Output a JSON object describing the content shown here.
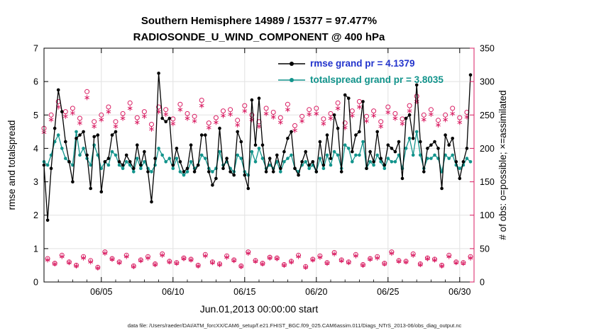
{
  "title": {
    "line1": "Southern Hemisphere 14989 / 15377 = 97.477%",
    "line2": "RADIOSONDE_U_WIND_COMPONENT @ 400 hPa"
  },
  "axes": {
    "left_label": "rmse and totalspread",
    "right_label": "# of obs: o=possible; ×=assimilated",
    "x_label": "Jun.01,2013 00:00:00 start",
    "x_ticks": [
      {
        "day": 5,
        "label": "06/05"
      },
      {
        "day": 10,
        "label": "06/10"
      },
      {
        "day": 15,
        "label": "06/15"
      },
      {
        "day": 20,
        "label": "06/20"
      },
      {
        "day": 25,
        "label": "06/25"
      },
      {
        "day": 30,
        "label": "06/30"
      }
    ],
    "y_left": {
      "min": 0,
      "max": 7,
      "ticks": [
        0,
        1,
        2,
        3,
        4,
        5,
        6,
        7
      ]
    },
    "y_right": {
      "min": 0,
      "max": 350,
      "ticks": [
        0,
        50,
        100,
        150,
        200,
        250,
        300,
        350
      ]
    }
  },
  "legend": {
    "items": [
      {
        "label": "rmse grand pr = 4.1379",
        "color": "#2233cc",
        "line_color": "#000000"
      },
      {
        "label": "totalspread grand pr = 3.8035",
        "color": "#12948c",
        "line_color": "#12948c"
      }
    ]
  },
  "caption": "data file: /Users/raeder/DAI/ATM_forcXX/CAM6_setup/f.e21.FHIST_BGC.f09_025.CAM6assim.011/Diags_NTrS_2013-06/obs_diag_output.nc",
  "colors": {
    "rmse": "#000000",
    "totalspread": "#12948c",
    "obs": "#d91e63",
    "grid": "#e2e2e2"
  },
  "chart_data": {
    "type": "line",
    "title": "Southern Hemisphere 14989 / 15377 = 97.477% | RADIOSONDE_U_WIND_COMPONENT @ 400 hPa",
    "xlabel": "Jun.01,2013 00:00:00 start",
    "ylabel_left": "rmse and totalspread",
    "ylabel_right": "# of obs: o=possible; ×=assimilated",
    "x_start_day": 1.0,
    "x_step_days": 0.25,
    "x_domain": [
      1,
      31
    ],
    "y_left_domain": [
      0,
      7
    ],
    "y_right_domain": [
      0,
      350
    ],
    "grid": true,
    "legend_position": "upper-center-right",
    "series": [
      {
        "name": "rmse",
        "axis": "left",
        "marker": "dot",
        "grand_mean": 4.1379,
        "values": [
          3.5,
          1.85,
          3.4,
          4.6,
          5.75,
          5.1,
          4.2,
          3.6,
          3.0,
          4.3,
          4.4,
          4.5,
          3.8,
          2.8,
          4.35,
          4.4,
          2.7,
          3.6,
          3.7,
          4.4,
          4.5,
          3.6,
          3.5,
          3.8,
          3.6,
          3.4,
          4.1,
          3.5,
          3.9,
          3.3,
          2.4,
          3.7,
          6.25,
          4.9,
          4.8,
          4.9,
          3.5,
          4.0,
          3.6,
          3.3,
          3.4,
          4.1,
          3.3,
          3.5,
          4.4,
          4.4,
          3.3,
          2.9,
          3.1,
          4.6,
          3.4,
          3.7,
          3.3,
          3.2,
          4.5,
          4.2,
          3.2,
          2.8,
          5.45,
          4.1,
          5.5,
          4.1,
          3.3,
          3.7,
          3.3,
          3.8,
          3.4,
          3.9,
          4.3,
          4.5,
          3.4,
          3.2,
          3.6,
          3.9,
          3.5,
          3.6,
          3.3,
          4.2,
          3.5,
          4.4,
          3.7,
          5.0,
          4.6,
          3.3,
          5.6,
          5.5,
          3.9,
          4.4,
          4.5,
          5.4,
          3.4,
          3.9,
          3.6,
          4.5,
          3.7,
          3.5,
          4.1,
          4.0,
          3.9,
          4.2,
          3.1,
          4.9,
          5.0,
          4.3,
          5.9,
          4.2,
          3.3,
          4.0,
          4.1,
          4.2,
          4.0,
          2.8,
          4.4,
          4.1,
          4.3,
          3.6,
          3.1,
          3.6,
          4.0,
          6.2
        ]
      },
      {
        "name": "totalspread",
        "axis": "left",
        "marker": "dot",
        "grand_mean": 3.8035,
        "values": [
          3.6,
          3.5,
          3.8,
          4.2,
          4.4,
          4.0,
          3.7,
          3.6,
          3.5,
          4.5,
          3.8,
          4.0,
          3.7,
          3.5,
          4.1,
          3.8,
          3.4,
          3.6,
          3.5,
          3.9,
          3.8,
          3.5,
          3.4,
          3.6,
          3.5,
          3.3,
          3.7,
          3.4,
          3.6,
          3.4,
          3.3,
          3.5,
          4.0,
          3.8,
          3.6,
          3.7,
          3.4,
          3.7,
          3.3,
          3.2,
          3.3,
          3.6,
          3.4,
          3.5,
          3.8,
          3.7,
          3.4,
          3.3,
          3.4,
          3.9,
          3.5,
          3.6,
          3.4,
          3.3,
          3.8,
          3.7,
          3.3,
          3.2,
          3.9,
          3.6,
          4.0,
          3.7,
          3.4,
          3.5,
          3.4,
          3.6,
          3.3,
          3.6,
          3.7,
          3.8,
          3.4,
          3.3,
          3.5,
          3.6,
          3.4,
          3.5,
          3.3,
          3.7,
          3.4,
          3.8,
          3.5,
          3.9,
          3.8,
          3.4,
          4.1,
          4.0,
          3.6,
          3.8,
          3.8,
          4.2,
          3.4,
          3.6,
          3.5,
          3.8,
          3.6,
          3.4,
          3.7,
          3.6,
          3.6,
          3.8,
          3.4,
          4.0,
          4.3,
          3.8,
          4.5,
          3.8,
          3.4,
          3.7,
          3.7,
          3.8,
          3.7,
          3.3,
          3.8,
          3.7,
          3.8,
          3.5,
          3.4,
          3.5,
          3.7,
          3.6
        ]
      },
      {
        "name": "possible",
        "axis": "right",
        "marker": "circle",
        "values": [
          230,
          35,
          250,
          28,
          270,
          40,
          255,
          30,
          260,
          25,
          245,
          38,
          285,
          32,
          240,
          22,
          250,
          45,
          262,
          35,
          240,
          30,
          252,
          40,
          268,
          24,
          246,
          33,
          255,
          38,
          236,
          27,
          262,
          42,
          258,
          31,
          244,
          29,
          266,
          36,
          252,
          34,
          248,
          25,
          272,
          41,
          238,
          30,
          246,
          27,
          256,
          39,
          258,
          33,
          242,
          24,
          264,
          45,
          250,
          32,
          240,
          28,
          260,
          37,
          254,
          36,
          246,
          26,
          266,
          31,
          234,
          40,
          248,
          23,
          258,
          34,
          260,
          39,
          244,
          29,
          252,
          44,
          268,
          33,
          238,
          30,
          256,
          41,
          270,
          26,
          248,
          35,
          256,
          38,
          240,
          28,
          262,
          45,
          252,
          32,
          244,
          31,
          264,
          42,
          278,
          27,
          250,
          36,
          258,
          34,
          242,
          25,
          250,
          40,
          260,
          30,
          246,
          29,
          254,
          38
        ]
      },
      {
        "name": "assimilated",
        "axis": "right",
        "marker": "asterisk",
        "values": [
          224,
          33,
          243,
          27,
          262,
          38,
          248,
          29,
          253,
          24,
          238,
          36,
          276,
          30,
          233,
          21,
          243,
          43,
          255,
          34,
          233,
          29,
          245,
          38,
          260,
          23,
          239,
          32,
          248,
          36,
          229,
          26,
          255,
          40,
          251,
          30,
          237,
          28,
          258,
          35,
          245,
          33,
          241,
          24,
          264,
          39,
          231,
          29,
          239,
          26,
          249,
          37,
          251,
          32,
          235,
          23,
          256,
          43,
          243,
          31,
          233,
          27,
          252,
          36,
          247,
          35,
          239,
          25,
          258,
          30,
          227,
          38,
          241,
          22,
          251,
          33,
          252,
          37,
          237,
          28,
          245,
          42,
          260,
          32,
          231,
          29,
          249,
          39,
          262,
          25,
          241,
          34,
          249,
          36,
          233,
          27,
          254,
          43,
          245,
          31,
          237,
          30,
          256,
          40,
          270,
          26,
          243,
          35,
          251,
          33,
          235,
          24,
          243,
          38,
          252,
          29,
          239,
          28,
          247,
          36
        ]
      }
    ]
  }
}
